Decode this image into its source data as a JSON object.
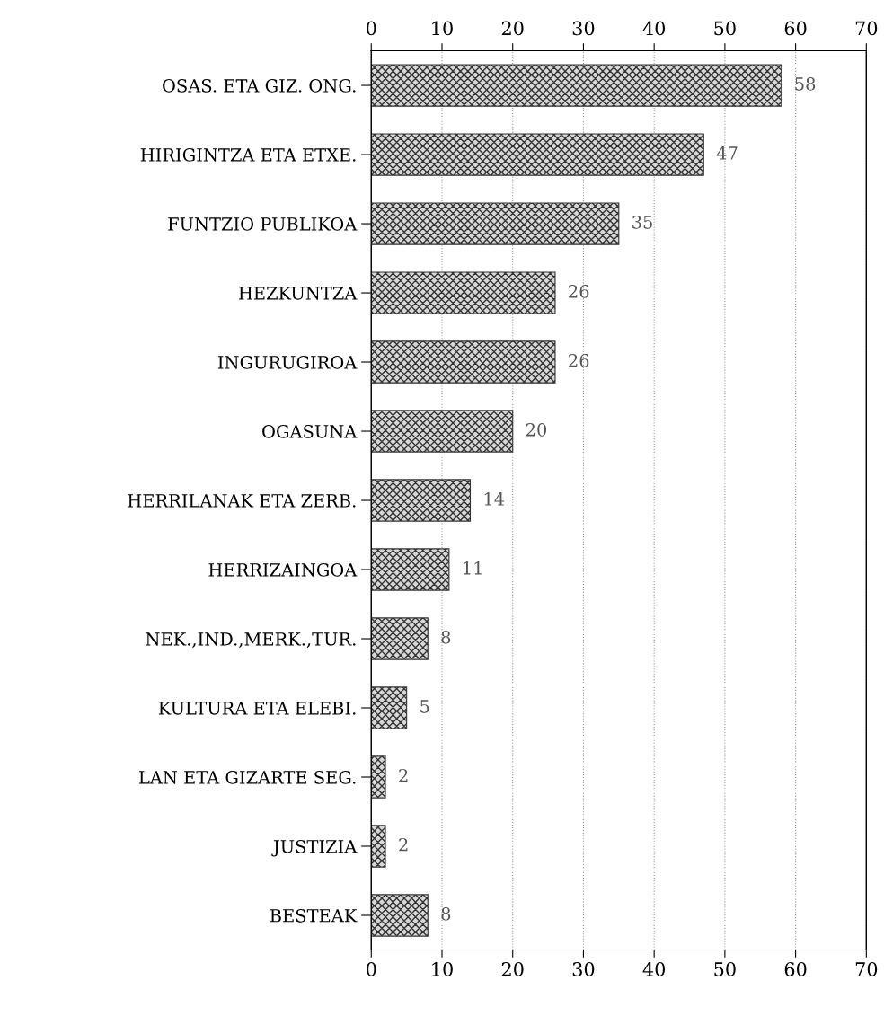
{
  "chart_data": {
    "type": "bar",
    "orientation": "horizontal",
    "categories": [
      "OSAS. ETA GIZ. ONG.",
      "HIRIGINTZA ETA ETXE.",
      "FUNTZIO PUBLIKOA",
      "HEZKUNTZA",
      "INGURUGIROA",
      "OGASUNA",
      "HERRILANAK ETA ZERB.",
      "HERRIZAINGOA",
      "NEK.,IND.,MERK.,TUR.",
      "KULTURA ETA ELEBI.",
      "LAN ETA GIZARTE SEG.",
      "JUSTIZIA",
      "BESTEAK"
    ],
    "values": [
      58,
      47,
      35,
      26,
      26,
      20,
      14,
      11,
      8,
      5,
      2,
      2,
      8
    ],
    "color": "#333333",
    "xlim": [
      0,
      70
    ],
    "xticks": [
      0,
      10,
      20,
      30,
      40,
      50,
      60,
      70
    ],
    "x2lim": [
      0,
      70
    ],
    "x2ticks": [
      0,
      10,
      20,
      30,
      40,
      50,
      60,
      70
    ],
    "grid": "x",
    "data_labels": true
  }
}
